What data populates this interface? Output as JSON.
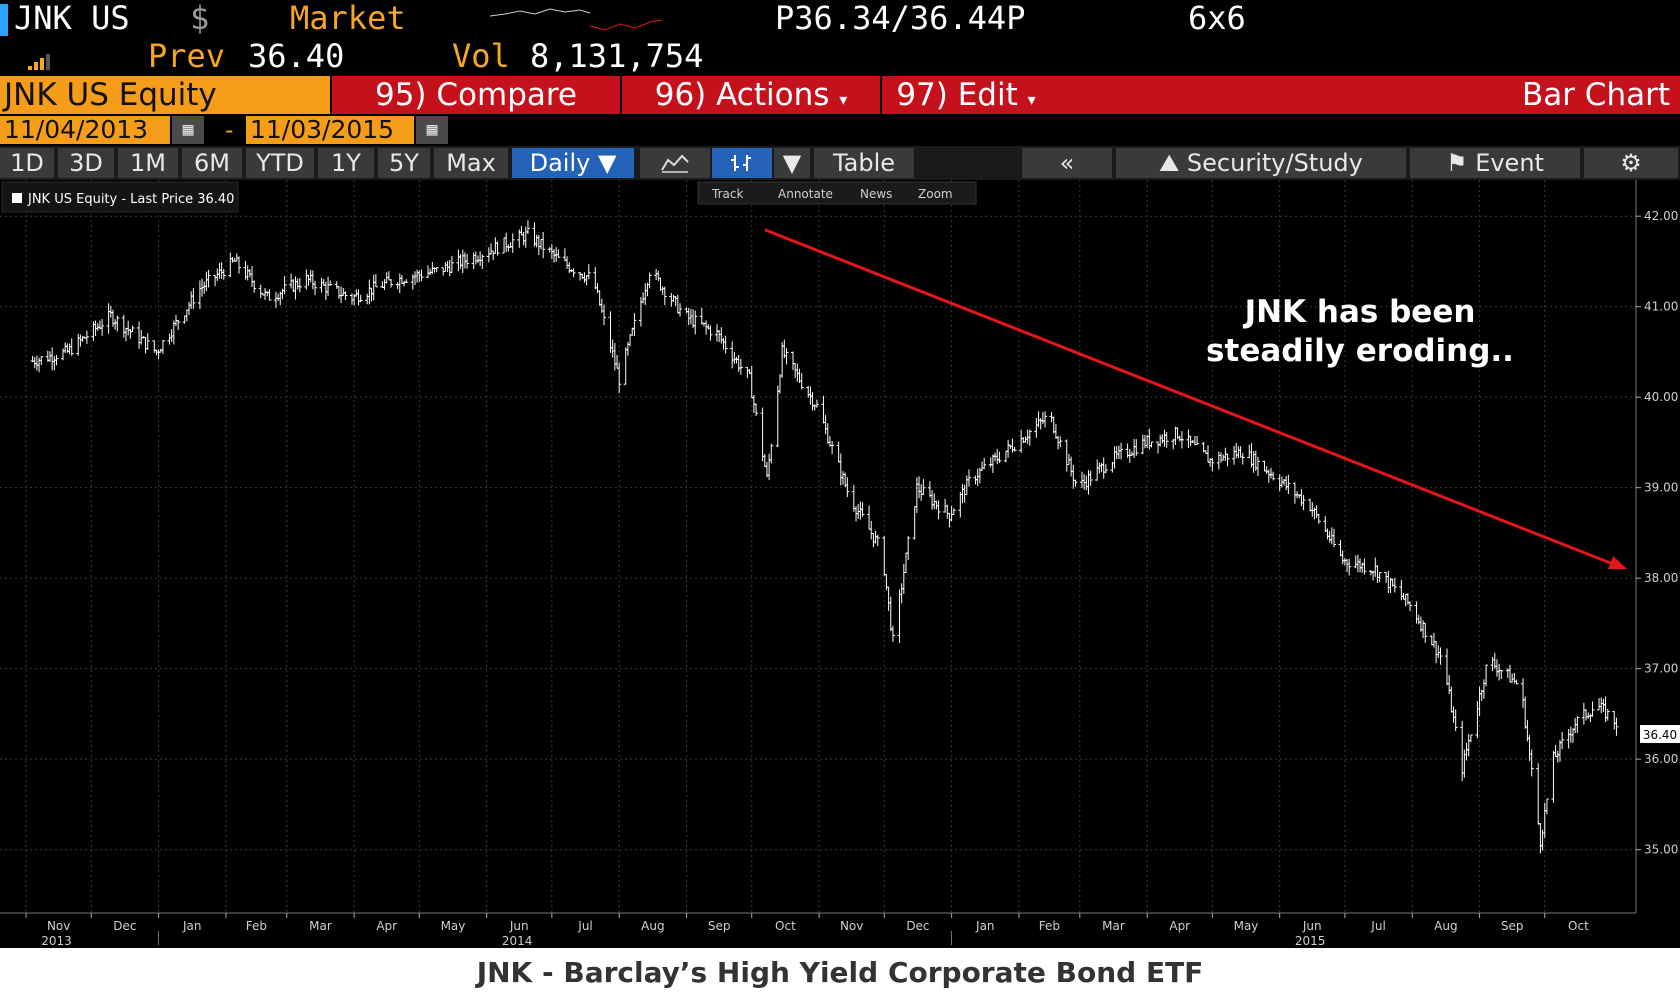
{
  "ticker": {
    "symbol": "JNK US",
    "currency": "$",
    "market_label": "Market",
    "quote": "P36.34/36.44P",
    "size": "6x6",
    "prev_label": "Prev",
    "prev_value": "36.40",
    "vol_label": "Vol",
    "vol_value": "8,131,754"
  },
  "toolbar": {
    "security": "JNK US Equity",
    "compare": "95) Compare",
    "actions": "96) Actions",
    "edit": "97) Edit",
    "view": "Bar Chart"
  },
  "date_range": {
    "start": "11/04/2013",
    "separator": "-",
    "end": "11/03/2015"
  },
  "range_buttons": [
    "1D",
    "3D",
    "1M",
    "6M",
    "YTD",
    "1Y",
    "5Y",
    "Max"
  ],
  "frequency": "Daily ▼",
  "table_label": "Table",
  "collapse_label": "«",
  "security_study_label": "Security/Study",
  "event_label": "Event",
  "subtools": [
    "Track",
    "Annotate",
    "News",
    "Zoom"
  ],
  "legend": "JNK US Equity - Last Price 36.40",
  "price_tag": "36.40",
  "annotation": [
    "JNK has been",
    "steadily eroding.."
  ],
  "caption": "JNK - Barclay’s High Yield Corporate Bond ETF",
  "colors": {
    "trend_arrow": "#e3161b",
    "bars": "#ffffff",
    "background": "#000000",
    "grid": "#3a3a3a"
  },
  "chart_data": {
    "type": "bar",
    "series": [
      {
        "name": "JNK US Equity - Last Price",
        "style": "ohlc-bars",
        "color": "#ffffff"
      }
    ],
    "x": [
      "2013-11-04",
      "2013-11-20",
      "2013-12-10",
      "2013-12-31",
      "2014-01-20",
      "2014-02-05",
      "2014-02-20",
      "2014-03-10",
      "2014-03-31",
      "2014-04-20",
      "2014-05-10",
      "2014-05-31",
      "2014-06-20",
      "2014-07-05",
      "2014-07-20",
      "2014-08-01",
      "2014-08-15",
      "2014-08-31",
      "2014-09-15",
      "2014-09-30",
      "2014-10-08",
      "2014-10-15",
      "2014-10-31",
      "2014-11-15",
      "2014-11-30",
      "2014-12-05",
      "2014-12-16",
      "2014-12-31",
      "2015-01-10",
      "2015-01-31",
      "2015-02-15",
      "2015-02-28",
      "2015-03-15",
      "2015-03-31",
      "2015-04-15",
      "2015-04-30",
      "2015-05-15",
      "2015-05-31",
      "2015-06-15",
      "2015-06-30",
      "2015-07-15",
      "2015-07-31",
      "2015-08-15",
      "2015-08-24",
      "2015-09-05",
      "2015-09-20",
      "2015-09-29",
      "2015-10-05",
      "2015-10-15",
      "2015-10-25",
      "2015-11-03"
    ],
    "y": [
      40.4,
      40.5,
      40.9,
      40.5,
      41.2,
      41.5,
      41.1,
      41.3,
      41.1,
      41.3,
      41.4,
      41.6,
      41.8,
      41.5,
      41.3,
      40.2,
      41.4,
      40.9,
      40.7,
      40.2,
      39.1,
      40.5,
      39.9,
      38.9,
      38.3,
      37.3,
      39.0,
      38.7,
      39.1,
      39.5,
      39.8,
      39.0,
      39.3,
      39.5,
      39.6,
      39.3,
      39.4,
      39.1,
      38.8,
      38.2,
      38.1,
      37.7,
      37.1,
      35.9,
      37.1,
      36.8,
      35.1,
      36.0,
      36.4,
      36.6,
      36.4
    ],
    "xlabel": "",
    "ylabel": "",
    "ylim": [
      34.3,
      42.4
    ],
    "y_ticks": [
      "42.00",
      "41.00",
      "40.00",
      "39.00",
      "38.00",
      "37.00",
      "36.00",
      "35.00"
    ],
    "y_tick_values": [
      42,
      41,
      40,
      39,
      38,
      37,
      36,
      35
    ],
    "month_labels": [
      "Nov",
      "Dec",
      "Jan",
      "Feb",
      "Mar",
      "Apr",
      "May",
      "Jun",
      "Jul",
      "Aug",
      "Sep",
      "Oct",
      "Nov",
      "Dec",
      "Jan",
      "Feb",
      "Mar",
      "Apr",
      "May",
      "Jun",
      "Jul",
      "Aug",
      "Sep",
      "Oct"
    ],
    "month_dates": [
      "2013-11-01",
      "2013-12-01",
      "2014-01-01",
      "2014-02-01",
      "2014-03-01",
      "2014-04-01",
      "2014-05-01",
      "2014-06-01",
      "2014-07-01",
      "2014-08-01",
      "2014-09-01",
      "2014-10-01",
      "2014-11-01",
      "2014-12-01",
      "2015-01-01",
      "2015-02-01",
      "2015-03-01",
      "2015-04-01",
      "2015-05-01",
      "2015-06-01",
      "2015-07-01",
      "2015-08-01",
      "2015-09-01",
      "2015-10-01"
    ],
    "year_labels": [
      "2013",
      "2014",
      "2015"
    ],
    "year_dates": [
      "2013-11-15",
      "2014-06-15",
      "2015-06-15"
    ],
    "trend_arrow": {
      "from": [
        "2014-10-07",
        41.85
      ],
      "to": [
        "2015-11-08",
        38.1
      ]
    },
    "grid": true,
    "legend_position": "top-left",
    "last_price": 36.4
  }
}
